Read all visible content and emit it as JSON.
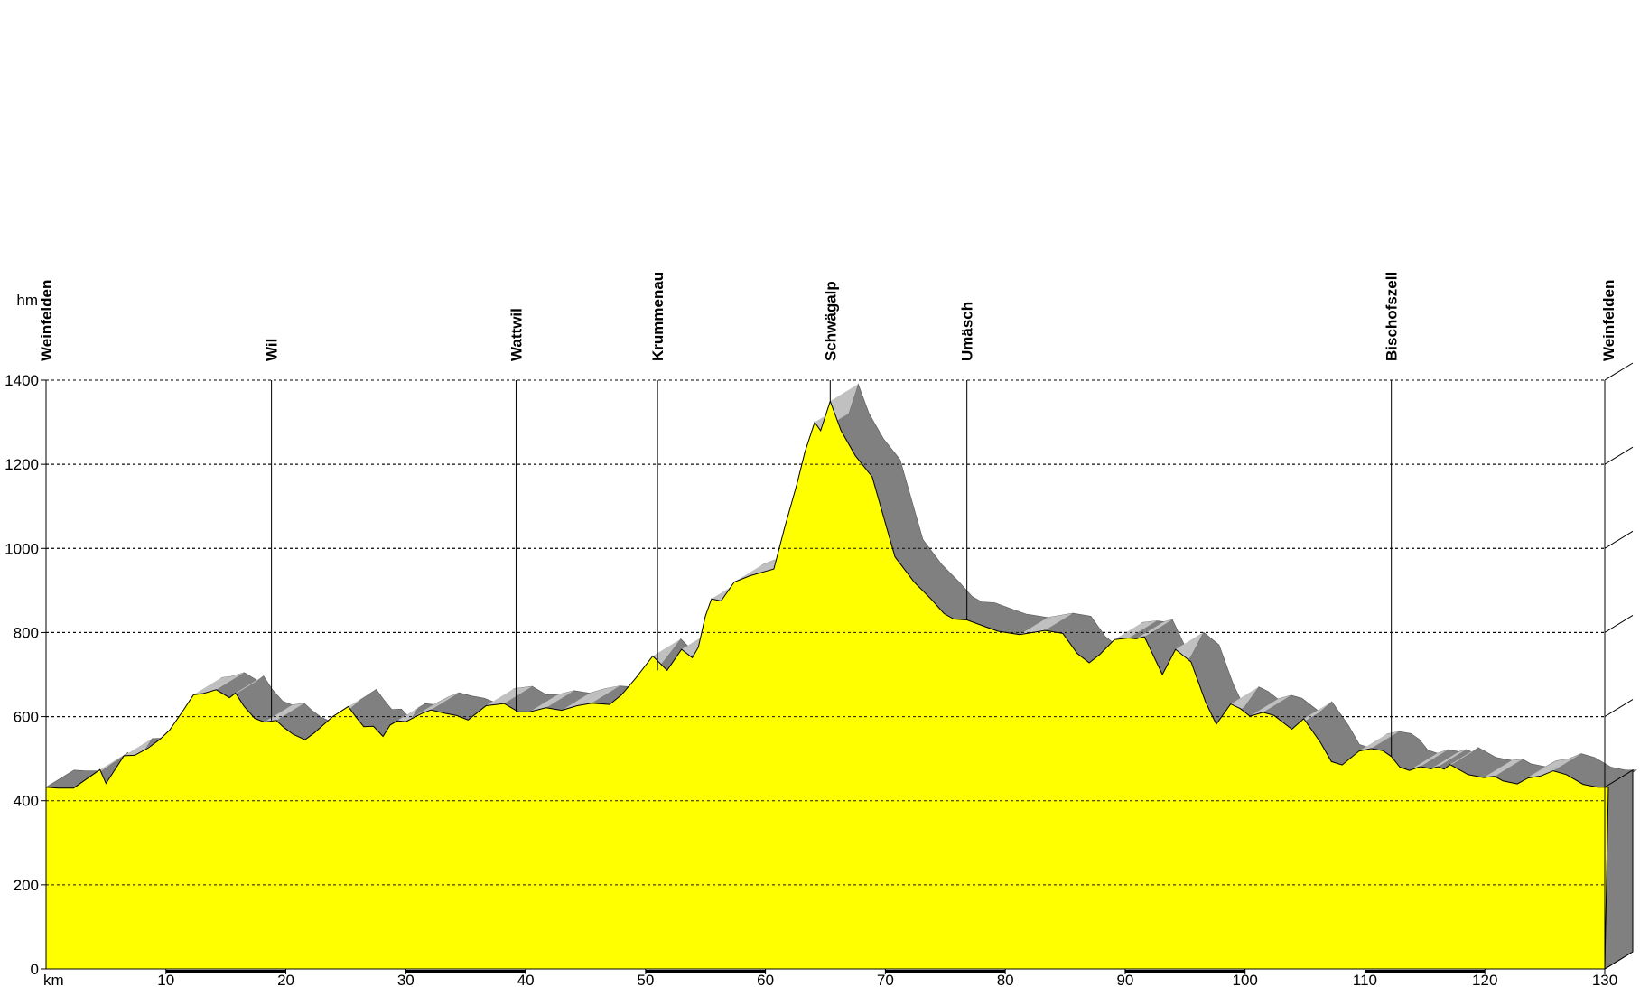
{
  "chart_data": {
    "type": "area",
    "title": "",
    "xlabel": "km",
    "ylabel": "hm",
    "xlim": [
      0,
      130
    ],
    "ylim": [
      0,
      1400
    ],
    "x_ticks": [
      10,
      20,
      30,
      40,
      50,
      60,
      70,
      80,
      90,
      100,
      110,
      120,
      130
    ],
    "y_ticks": [
      0,
      200,
      400,
      600,
      800,
      1000,
      1200,
      1400
    ],
    "grid": true,
    "colors": {
      "fill": "#ffff00",
      "shadow": "#808080",
      "shadow_light": "#c0c0c0",
      "grid": "#000000"
    },
    "places": [
      {
        "name": "Weinfelden",
        "km": 0
      },
      {
        "name": "Wil",
        "km": 18.8
      },
      {
        "name": "Wattwil",
        "km": 39.2
      },
      {
        "name": "Krummenau",
        "km": 51
      },
      {
        "name": "Schwägalp",
        "km": 65.4
      },
      {
        "name": "Umäsch",
        "km": 76.8
      },
      {
        "name": "Bischofszell",
        "km": 112.2
      },
      {
        "name": "Weinfelden",
        "km": 130.3
      }
    ],
    "series": [
      {
        "x": [
          0,
          1,
          2.3,
          4.5,
          5,
          6.5,
          7.4,
          8.5,
          9.5,
          10.3,
          11.4,
          12.3,
          13.1,
          14.2,
          15.3,
          15.8,
          16.5,
          17.4,
          18.2,
          19.2,
          19.8,
          20.6,
          21.6,
          22.4,
          23.9,
          25.2,
          25.9,
          26.5,
          27.3,
          28.1,
          28.7,
          29.3,
          30,
          31.3,
          32.1,
          33.2,
          34.2,
          35.2,
          36.7,
          38.2,
          39.4,
          40.3,
          41.7,
          43,
          44.3,
          45.5,
          47,
          48,
          49.2,
          50.6,
          51.8,
          53,
          53.9,
          54.4,
          55,
          55.5,
          56.3,
          57.4,
          58.7,
          60.7,
          61.6,
          62.6,
          63.3,
          64.1,
          64.6,
          65.4,
          66.3,
          67.5,
          68.9,
          70.8,
          72.4,
          73.8,
          74.9,
          75.7,
          76.8,
          78.2,
          79.4,
          81.2,
          83.3,
          84.8,
          86,
          87,
          87.9,
          89.1,
          90.3,
          90.9,
          91.6,
          93.1,
          94.2,
          95.5,
          96.7,
          97.6,
          98.8,
          99.6,
          100.4,
          101.5,
          102.4,
          103.9,
          104.9,
          106.3,
          107.2,
          108.1,
          109.5,
          110.5,
          111.5,
          112.2,
          112.9,
          113.7,
          114.6,
          115.5,
          116.1,
          116.6,
          117.1,
          117.6,
          118.6,
          119.9,
          120.8,
          121.5,
          122.7,
          123.6,
          124.7,
          125.7,
          126.8,
          128.2,
          129.4,
          130.3
        ],
        "y": [
          432,
          430,
          430,
          474,
          441,
          507,
          508,
          525,
          546,
          568,
          613,
          652,
          655,
          664,
          645,
          656,
          625,
          596,
          587,
          591,
          575,
          558,
          545,
          562,
          600,
          624,
          597,
          576,
          577,
          553,
          580,
          590,
          588,
          607,
          616,
          608,
          603,
          592,
          626,
          631,
          611,
          611,
          621,
          615,
          626,
          632,
          629,
          652,
          692,
          744,
          710,
          760,
          740,
          765,
          840,
          880,
          875,
          920,
          935,
          951,
          1050,
          1150,
          1230,
          1300,
          1280,
          1350,
          1280,
          1220,
          1170,
          980,
          920,
          880,
          845,
          832,
          830,
          815,
          803,
          795,
          805,
          798,
          750,
          728,
          748,
          783,
          787,
          785,
          790,
          700,
          760,
          730,
          635,
          582,
          630,
          619,
          601,
          610,
          603,
          570,
          595,
          538,
          493,
          485,
          518,
          524,
          519,
          505,
          480,
          472,
          481,
          476,
          481,
          475,
          486,
          478,
          462,
          455,
          458,
          447,
          440,
          454,
          459,
          471,
          462,
          439,
          432,
          432
        ]
      }
    ]
  }
}
